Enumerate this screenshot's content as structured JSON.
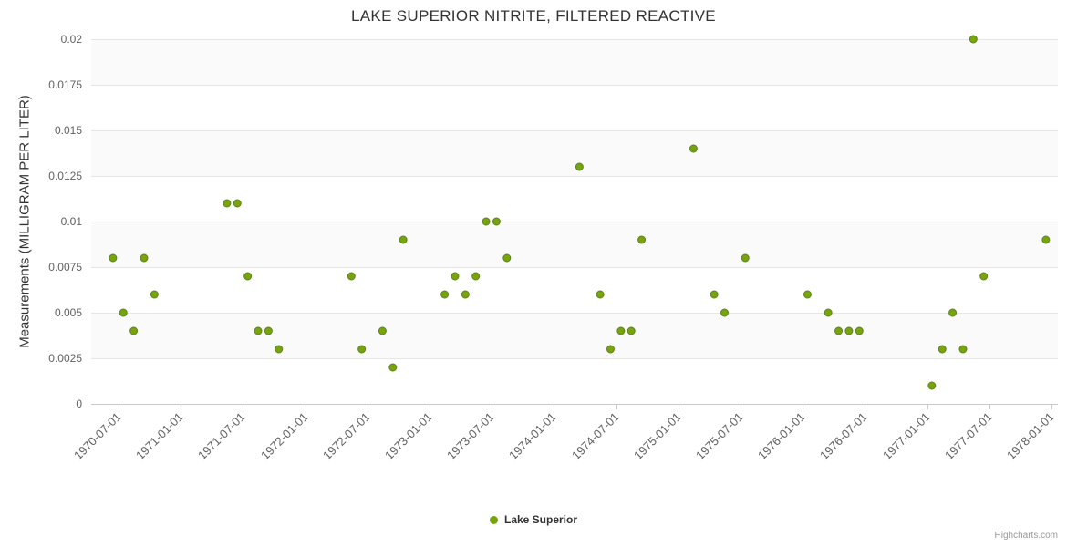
{
  "credits": {
    "label": "Highcharts.com"
  },
  "colors": {
    "point": "#77a30b",
    "point_border": "#5d8423",
    "grid": "#e6e6e6",
    "band": "#fafafa",
    "axis_line": "#c8c8c8",
    "axis_label": "#606060",
    "title_text": "#333333",
    "credits_text": "#999999"
  },
  "chart_data": {
    "type": "scatter",
    "title": "LAKE SUPERIOR NITRITE, FILTERED REACTIVE",
    "xlabel": "",
    "ylabel": "Measurements (MILLIGRAM PER LITER)",
    "ylim": [
      0,
      0.02
    ],
    "legend_position": "bottom-center",
    "grid": true,
    "x_ticks": [
      "1970-07-01",
      "1971-01-01",
      "1971-07-01",
      "1972-01-01",
      "1972-07-01",
      "1973-01-01",
      "1973-07-01",
      "1974-01-01",
      "1974-07-01",
      "1975-01-01",
      "1975-07-01",
      "1976-01-01",
      "1976-07-01",
      "1977-01-01",
      "1977-07-01",
      "1978-01-01"
    ],
    "y_ticks": [
      {
        "value": 0,
        "label": "0"
      },
      {
        "value": 0.0025,
        "label": "0.0025"
      },
      {
        "value": 0.005,
        "label": "0.005"
      },
      {
        "value": 0.0075,
        "label": "0.0075"
      },
      {
        "value": 0.01,
        "label": "0.01"
      },
      {
        "value": 0.0125,
        "label": "0.0125"
      },
      {
        "value": 0.015,
        "label": "0.015"
      },
      {
        "value": 0.0175,
        "label": "0.0175"
      },
      {
        "value": 0.02,
        "label": "0.02"
      }
    ],
    "series": [
      {
        "name": "Lake Superior",
        "points": [
          {
            "date": "1970-06",
            "value": 0.008
          },
          {
            "date": "1970-07",
            "value": 0.005
          },
          {
            "date": "1970-08",
            "value": 0.004
          },
          {
            "date": "1970-09",
            "value": 0.008
          },
          {
            "date": "1970-10",
            "value": 0.006
          },
          {
            "date": "1971-05",
            "value": 0.011
          },
          {
            "date": "1971-06",
            "value": 0.011
          },
          {
            "date": "1971-07",
            "value": 0.007
          },
          {
            "date": "1971-08",
            "value": 0.004
          },
          {
            "date": "1971-09",
            "value": 0.004
          },
          {
            "date": "1971-10",
            "value": 0.003
          },
          {
            "date": "1972-05",
            "value": 0.007
          },
          {
            "date": "1972-06",
            "value": 0.003
          },
          {
            "date": "1972-08",
            "value": 0.004
          },
          {
            "date": "1972-09",
            "value": 0.002
          },
          {
            "date": "1972-10",
            "value": 0.009
          },
          {
            "date": "1973-02",
            "value": 0.006
          },
          {
            "date": "1973-03",
            "value": 0.007
          },
          {
            "date": "1973-04",
            "value": 0.006
          },
          {
            "date": "1973-05",
            "value": 0.007
          },
          {
            "date": "1973-06",
            "value": 0.01
          },
          {
            "date": "1973-07",
            "value": 0.01
          },
          {
            "date": "1973-08",
            "value": 0.008
          },
          {
            "date": "1974-03",
            "value": 0.013
          },
          {
            "date": "1974-05",
            "value": 0.006
          },
          {
            "date": "1974-06",
            "value": 0.003
          },
          {
            "date": "1974-07",
            "value": 0.004
          },
          {
            "date": "1974-08",
            "value": 0.004
          },
          {
            "date": "1974-09",
            "value": 0.009
          },
          {
            "date": "1975-02",
            "value": 0.014
          },
          {
            "date": "1975-04",
            "value": 0.006
          },
          {
            "date": "1975-05",
            "value": 0.005
          },
          {
            "date": "1975-07",
            "value": 0.008
          },
          {
            "date": "1976-01",
            "value": 0.006
          },
          {
            "date": "1976-03",
            "value": 0.005
          },
          {
            "date": "1976-04",
            "value": 0.004
          },
          {
            "date": "1976-05",
            "value": 0.004
          },
          {
            "date": "1976-06",
            "value": 0.004
          },
          {
            "date": "1977-01",
            "value": 0.001
          },
          {
            "date": "1977-02",
            "value": 0.003
          },
          {
            "date": "1977-03",
            "value": 0.005
          },
          {
            "date": "1977-04",
            "value": 0.003
          },
          {
            "date": "1977-05",
            "value": 0.02
          },
          {
            "date": "1977-06",
            "value": 0.007
          },
          {
            "date": "1977-12",
            "value": 0.009
          }
        ]
      }
    ]
  }
}
